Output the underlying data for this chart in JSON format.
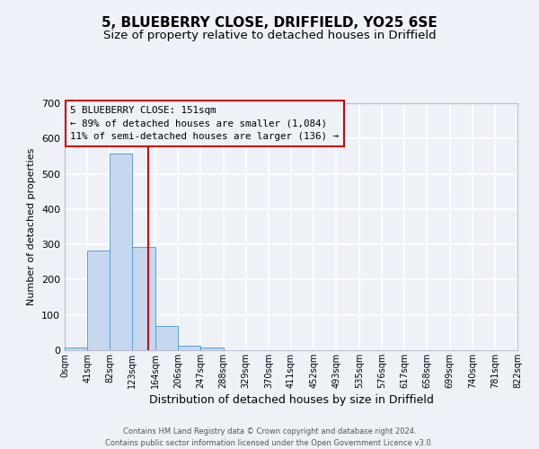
{
  "title": "5, BLUEBERRY CLOSE, DRIFFIELD, YO25 6SE",
  "subtitle": "Size of property relative to detached houses in Driffield",
  "xlabel": "Distribution of detached houses by size in Driffield",
  "ylabel": "Number of detached properties",
  "bar_values": [
    7,
    282,
    557,
    293,
    68,
    13,
    8,
    0,
    0,
    0,
    0,
    0,
    0,
    0,
    0,
    0,
    0,
    0,
    0,
    0
  ],
  "bin_edges": [
    0,
    41,
    82,
    123,
    164,
    206,
    247,
    288,
    329,
    370,
    411,
    452,
    493,
    535,
    576,
    617,
    658,
    699,
    740,
    781,
    822
  ],
  "tick_labels": [
    "0sqm",
    "41sqm",
    "82sqm",
    "123sqm",
    "164sqm",
    "206sqm",
    "247sqm",
    "288sqm",
    "329sqm",
    "370sqm",
    "411sqm",
    "452sqm",
    "493sqm",
    "535sqm",
    "576sqm",
    "617sqm",
    "658sqm",
    "699sqm",
    "740sqm",
    "781sqm",
    "822sqm"
  ],
  "bar_color": "#c5d8f0",
  "bar_edge_color": "#5a9fd4",
  "property_line_x": 151,
  "property_line_color": "#cc0000",
  "ylim": [
    0,
    700
  ],
  "yticks": [
    0,
    100,
    200,
    300,
    400,
    500,
    600,
    700
  ],
  "annotation_box_text": "5 BLUEBERRY CLOSE: 151sqm\n← 89% of detached houses are smaller (1,084)\n11% of semi-detached houses are larger (136) →",
  "annotation_box_color": "#cc0000",
  "background_color": "#eef2f8",
  "grid_color": "#ffffff",
  "footer_line1": "Contains HM Land Registry data © Crown copyright and database right 2024.",
  "footer_line2": "Contains public sector information licensed under the Open Government Licence v3.0.",
  "title_fontsize": 11,
  "subtitle_fontsize": 9.5
}
